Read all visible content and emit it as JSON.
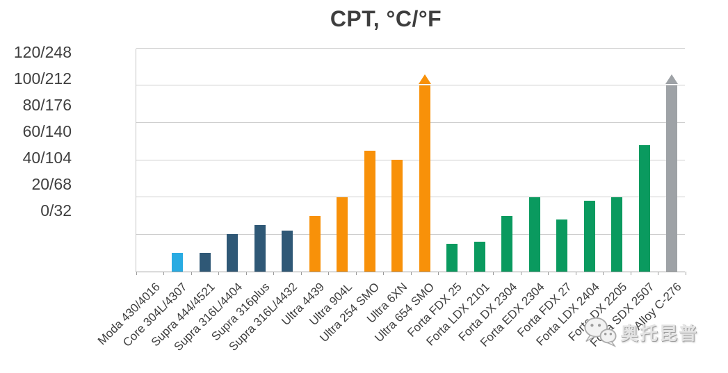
{
  "chart_data": {
    "type": "bar",
    "title": "CPT, °C/°F",
    "xlabel": "",
    "ylabel": "",
    "ylim": [
      0,
      120
    ],
    "grid": true,
    "legend": false,
    "y_gridlines": [
      0,
      20,
      40,
      60,
      80,
      100,
      120
    ],
    "ytick_labels": [
      "120/248",
      "100/212",
      "80/176",
      "60/140",
      "40/104",
      "20/68",
      "0/32"
    ],
    "categories": [
      "Moda 430/4016",
      "Core 304L/4307",
      "Supra 444/4521",
      "Supra 316L/4404",
      "Supra 316plus",
      "Supra 316L/4432",
      "Ultra 4439",
      "Ultra 904L",
      "Ultra 254 SMO",
      "Ultra 6XN",
      "Ultra 654 SMO",
      "Forta FDX 25",
      "Forta LDX 2101",
      "Forta DX 2304",
      "Forta EDX 2304",
      "Forta FDX 27",
      "Forta LDX 2404",
      "Forta DX 2205",
      "Forta SDX 2507",
      "Alloy C-276"
    ],
    "values": [
      0,
      10,
      10,
      20,
      25,
      22,
      30,
      40,
      65,
      60,
      100,
      15,
      16,
      30,
      40,
      28,
      38,
      40,
      68,
      100
    ],
    "bars": [
      {
        "label": "Moda 430/4016",
        "value": 0,
        "color": "#29ABE2",
        "overflow_arrow": false
      },
      {
        "label": "Core 304L/4307",
        "value": 10,
        "color": "#29ABE2",
        "overflow_arrow": false
      },
      {
        "label": "Supra 444/4521",
        "value": 10,
        "color": "#2F5876",
        "overflow_arrow": false
      },
      {
        "label": "Supra 316L/4404",
        "value": 20,
        "color": "#2F5876",
        "overflow_arrow": false
      },
      {
        "label": "Supra 316plus",
        "value": 25,
        "color": "#2F5876",
        "overflow_arrow": false
      },
      {
        "label": "Supra 316L/4432",
        "value": 22,
        "color": "#2F5876",
        "overflow_arrow": false
      },
      {
        "label": "Ultra 4439",
        "value": 30,
        "color": "#F89109",
        "overflow_arrow": false
      },
      {
        "label": "Ultra 904L",
        "value": 40,
        "color": "#F89109",
        "overflow_arrow": false
      },
      {
        "label": "Ultra 254 SMO",
        "value": 65,
        "color": "#F89109",
        "overflow_arrow": false
      },
      {
        "label": "Ultra 6XN",
        "value": 60,
        "color": "#F89109",
        "overflow_arrow": false
      },
      {
        "label": "Ultra 654 SMO",
        "value": 100,
        "color": "#F89109",
        "overflow_arrow": true
      },
      {
        "label": "Forta FDX 25",
        "value": 15,
        "color": "#0A9A5F",
        "overflow_arrow": false
      },
      {
        "label": "Forta LDX 2101",
        "value": 16,
        "color": "#0A9A5F",
        "overflow_arrow": false
      },
      {
        "label": "Forta DX 2304",
        "value": 30,
        "color": "#0A9A5F",
        "overflow_arrow": false
      },
      {
        "label": "Forta EDX 2304",
        "value": 40,
        "color": "#0A9A5F",
        "overflow_arrow": false
      },
      {
        "label": "Forta FDX 27",
        "value": 28,
        "color": "#0A9A5F",
        "overflow_arrow": false
      },
      {
        "label": "Forta LDX 2404",
        "value": 38,
        "color": "#0A9A5F",
        "overflow_arrow": false
      },
      {
        "label": "Forta DX 2205",
        "value": 40,
        "color": "#0A9A5F",
        "overflow_arrow": false
      },
      {
        "label": "Forta SDX 2507",
        "value": 68,
        "color": "#0A9A5F",
        "overflow_arrow": false
      },
      {
        "label": "Alloy C-276",
        "value": 100,
        "color": "#9EA2A6",
        "overflow_arrow": true
      }
    ]
  },
  "watermark": {
    "icon": "wechat-icon",
    "text": "奥托昆普"
  },
  "colors": {
    "background": "#FFFFFF",
    "title_text": "#3E3E3E",
    "axis_text": "#3F3F3F",
    "gridline": "#CDCDCD",
    "axis_line": "#9C9C9C",
    "core_light_blue": "#29ABE2",
    "supra_dark_blue": "#2F5876",
    "ultra_orange": "#F89109",
    "forta_green": "#0A9A5F",
    "alloy_gray": "#9EA2A6"
  }
}
